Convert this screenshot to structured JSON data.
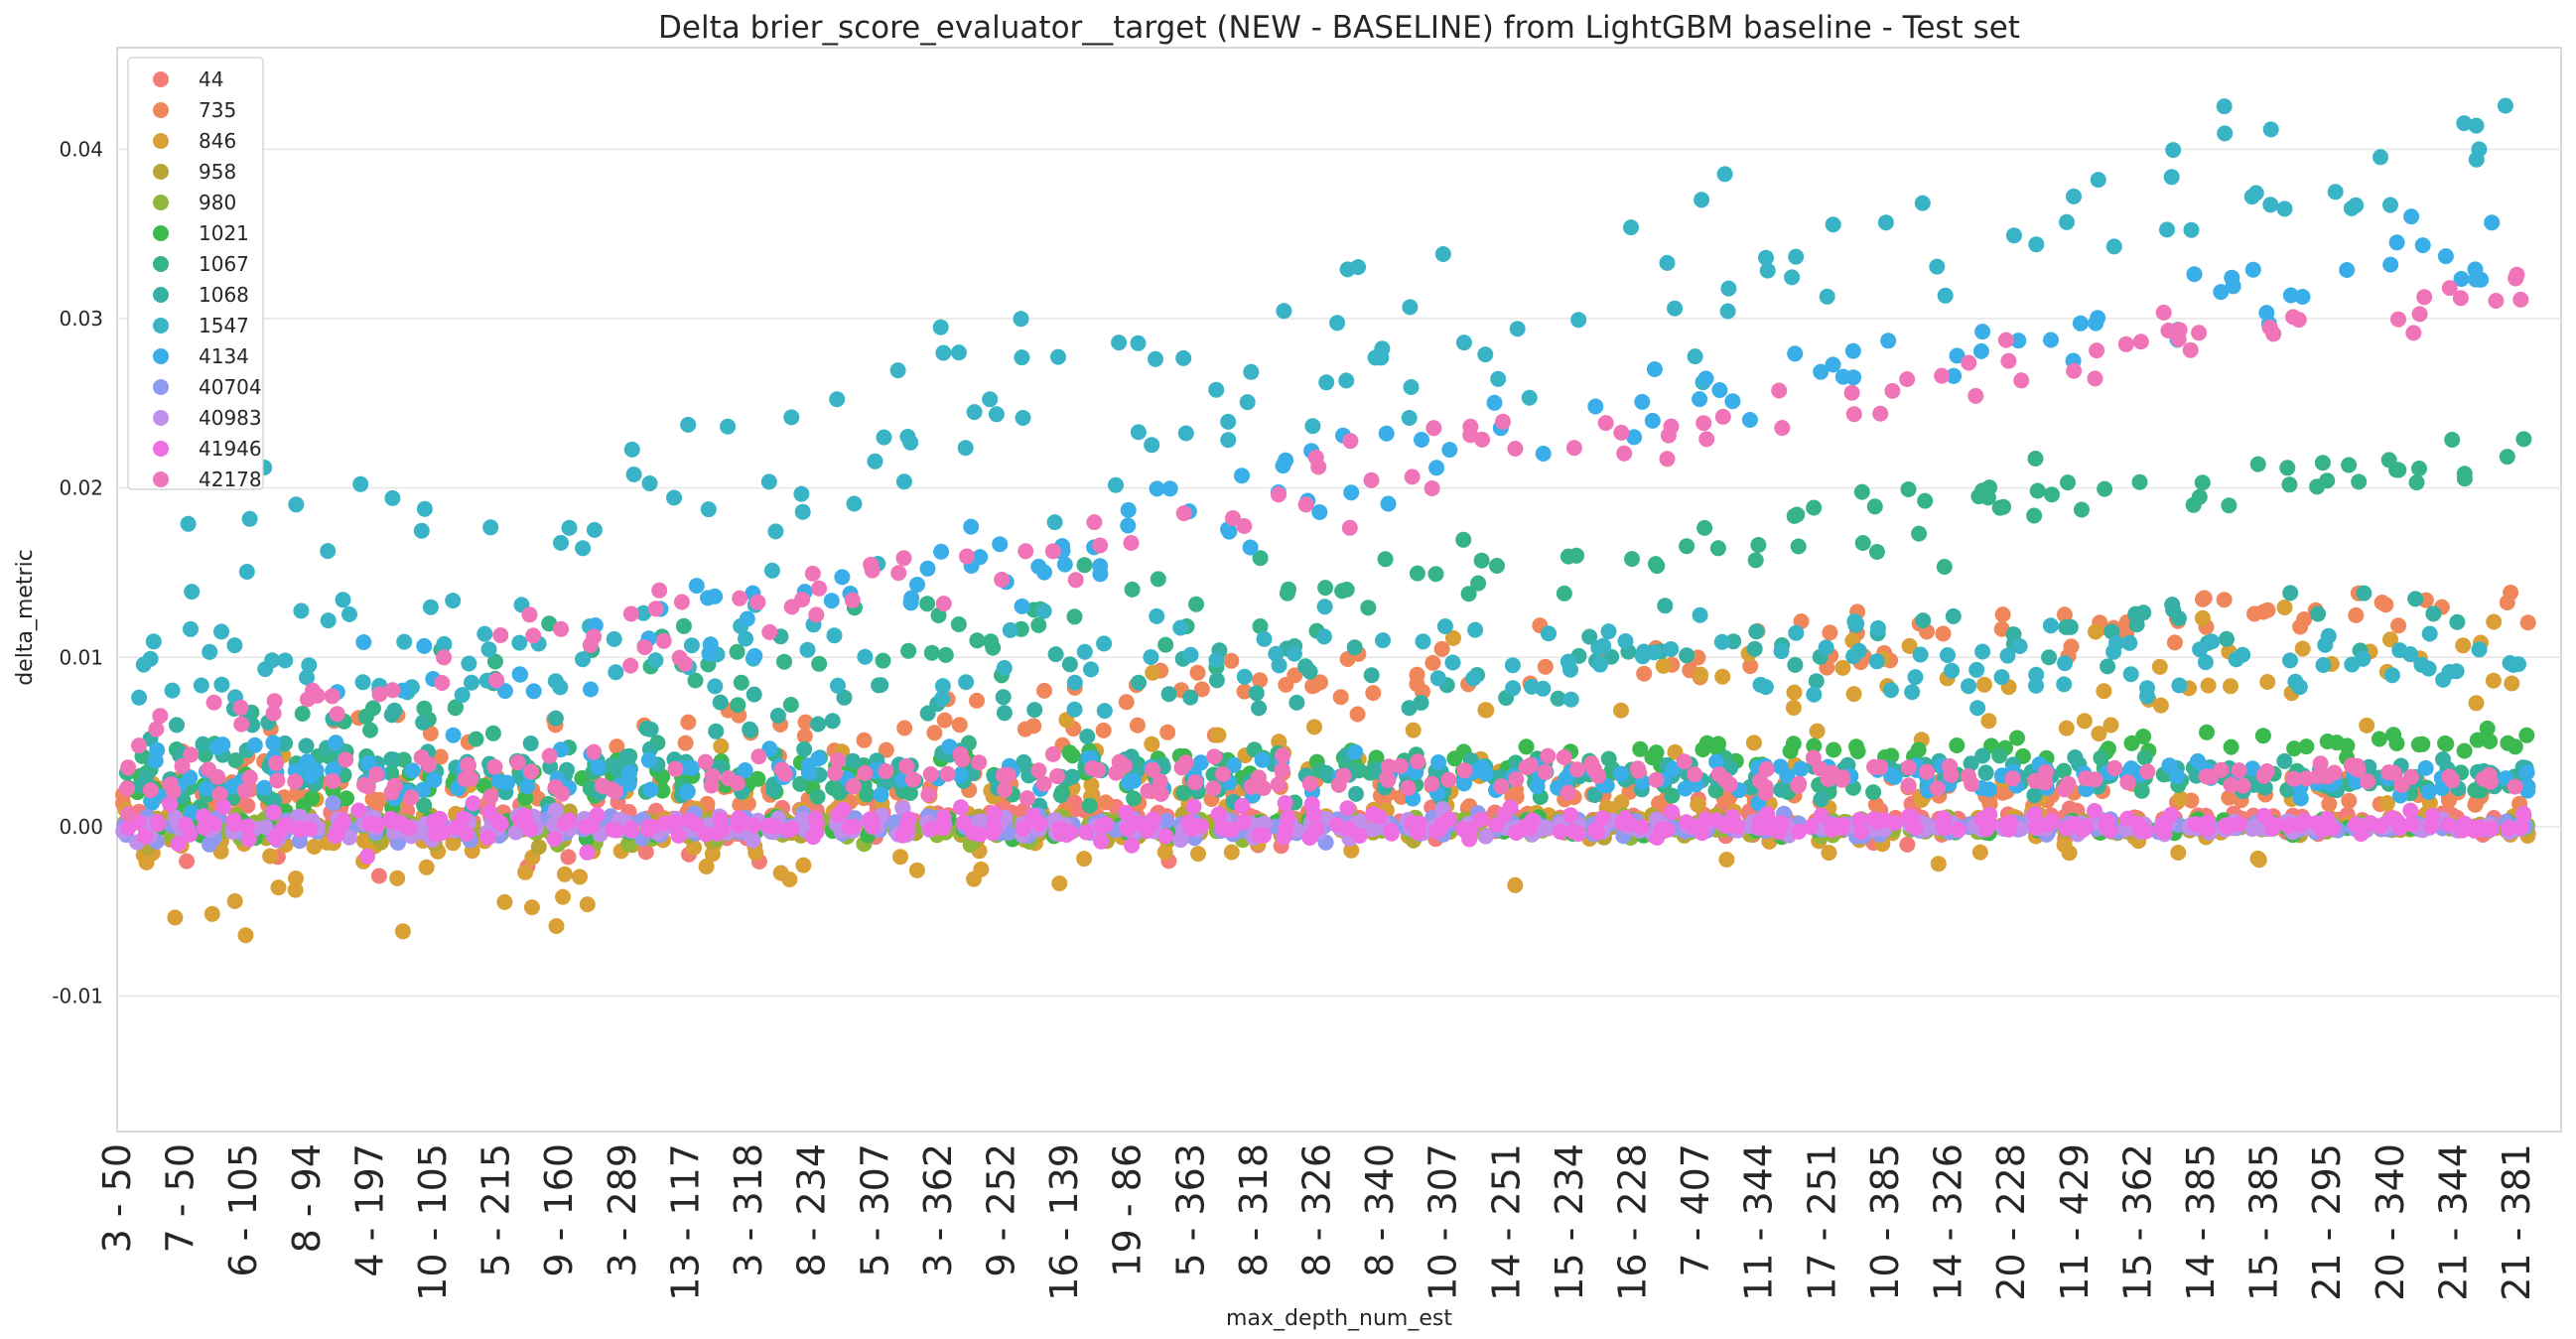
{
  "chart_data": {
    "type": "scatter",
    "title": "Delta brier_score_evaluator__target (NEW - BASELINE) from LightGBM baseline - Test set",
    "xlabel": "max_depth_num_est",
    "ylabel": "delta_metric",
    "ylim": [
      -0.018,
      0.046
    ],
    "yticks": [
      -0.01,
      0.0,
      0.01,
      0.02,
      0.03,
      0.04
    ],
    "ytick_labels": [
      "-0.01",
      "0.00",
      "0.01",
      "0.02",
      "0.03",
      "0.04"
    ],
    "x_tick_labels": [
      "3 - 50",
      "7 - 50",
      "6 - 105",
      "8 - 94",
      "4 - 197",
      "10 - 105",
      "5 - 215",
      "9 - 160",
      "3 - 289",
      "13 - 117",
      "3 - 318",
      "8 - 234",
      "5 - 307",
      "3 - 362",
      "9 - 252",
      "16 - 139",
      "19 - 86",
      "5 - 363",
      "8 - 318",
      "8 - 326",
      "8 - 340",
      "10 - 307",
      "14 - 251",
      "15 - 234",
      "16 - 228",
      "7 - 407",
      "11 - 344",
      "17 - 251",
      "10 - 385",
      "14 - 326",
      "20 - 228",
      "11 - 429",
      "15 - 362",
      "14 - 385",
      "15 - 385",
      "21 - 295",
      "20 - 340",
      "21 - 344",
      "21 - 381"
    ],
    "grid": true,
    "legend_position": "top-left",
    "series": [
      {
        "name": "44",
        "color": "#f37b78",
        "center": 0.0005,
        "start": 0.0,
        "end": 0.0,
        "spread": 0.003,
        "decay": 0.9
      },
      {
        "name": "735",
        "color": "#f0875a",
        "center": 0.002,
        "start": 0.002,
        "end": 0.0135,
        "spread": 0.004,
        "decay": 0.6
      },
      {
        "name": "846",
        "color": "#d9a036",
        "center": 0.0,
        "start": -0.005,
        "end": 0.0105,
        "spread": 0.009,
        "decay": 0.4
      },
      {
        "name": "958",
        "color": "#b8a533",
        "center": 0.0,
        "start": 0.0,
        "end": 0.0,
        "spread": 0.0015,
        "decay": 1.0
      },
      {
        "name": "980",
        "color": "#8fb73a",
        "center": 0.0,
        "start": 0.0,
        "end": 0.0,
        "spread": 0.0015,
        "decay": 1.0
      },
      {
        "name": "1021",
        "color": "#3cb94e",
        "center": 0.0,
        "start": 0.002,
        "end": 0.005,
        "spread": 0.0015,
        "decay": 0.5
      },
      {
        "name": "1067",
        "color": "#36b488",
        "center": 0.003,
        "start": 0.003,
        "end": 0.022,
        "spread": 0.006,
        "decay": 0.6
      },
      {
        "name": "1068",
        "color": "#37b0a4",
        "center": 0.003,
        "start": 0.004,
        "end": 0.013,
        "spread": 0.005,
        "decay": 0.6
      },
      {
        "name": "1547",
        "color": "#39b4c7",
        "center": 0.01,
        "start": 0.012,
        "end": 0.041,
        "spread": 0.012,
        "decay": 0.6
      },
      {
        "name": "4134",
        "color": "#3aaee8",
        "center": 0.003,
        "start": 0.002,
        "end": 0.0345,
        "spread": 0.005,
        "decay": 0.5
      },
      {
        "name": "40704",
        "color": "#8e9af0",
        "center": 0.0,
        "start": 0.0,
        "end": 0.0,
        "spread": 0.0012,
        "decay": 1.0
      },
      {
        "name": "40983",
        "color": "#c18fec",
        "center": 0.0,
        "start": 0.0,
        "end": 0.0,
        "spread": 0.0012,
        "decay": 1.0
      },
      {
        "name": "41946",
        "color": "#ee6fe2",
        "center": 0.0,
        "start": 0.0,
        "end": 0.0003,
        "spread": 0.0018,
        "decay": 0.9
      },
      {
        "name": "42178",
        "color": "#f075b8",
        "center": 0.003,
        "start": 0.004,
        "end": 0.032,
        "spread": 0.004,
        "decay": 0.6
      }
    ]
  }
}
